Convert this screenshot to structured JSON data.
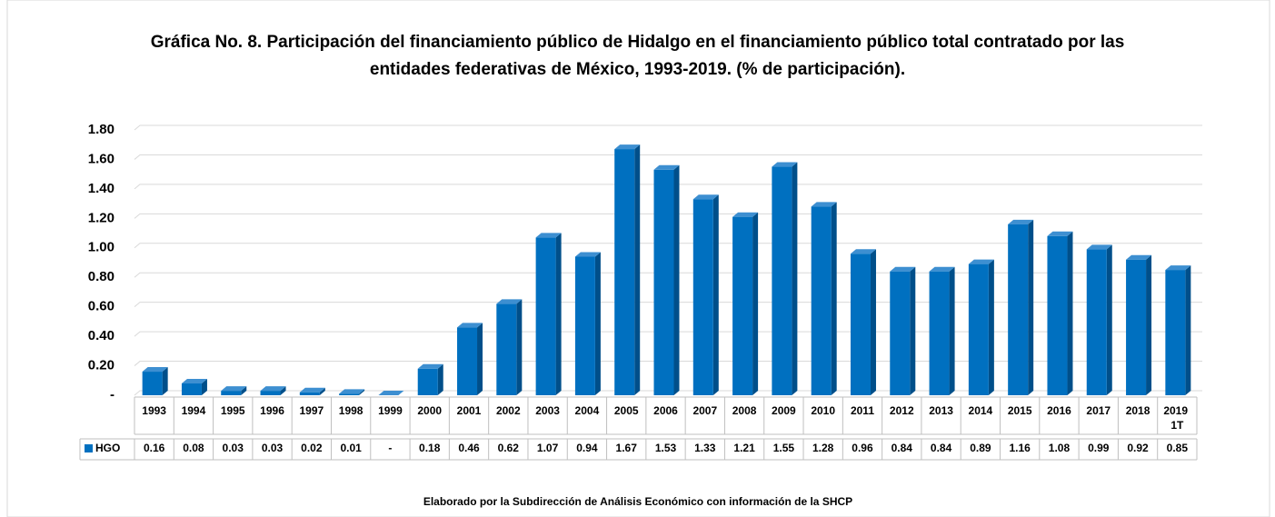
{
  "chart_data": {
    "type": "bar",
    "title": "Gráfica No. 8. Participación del financiamiento público de Hidalgo en el financiamiento público total contratado por las entidades federativas de México, 1993-2019. (% de participación).",
    "categories": [
      "1993",
      "1994",
      "1995",
      "1996",
      "1997",
      "1998",
      "1999",
      "2000",
      "2001",
      "2002",
      "2003",
      "2004",
      "2005",
      "2006",
      "2007",
      "2008",
      "2009",
      "2010",
      "2011",
      "2012",
      "2013",
      "2014",
      "2015",
      "2016",
      "2017",
      "2018",
      "2019 1T"
    ],
    "series": [
      {
        "name": "HGO",
        "color": "#0070c0",
        "values": [
          0.16,
          0.08,
          0.03,
          0.03,
          0.02,
          0.01,
          0,
          0.18,
          0.46,
          0.62,
          1.07,
          0.94,
          1.67,
          1.53,
          1.33,
          1.21,
          1.55,
          1.28,
          0.96,
          0.84,
          0.84,
          0.89,
          1.16,
          1.08,
          0.99,
          0.92,
          0.85
        ],
        "value_labels": [
          "0.16",
          "0.08",
          "0.03",
          "0.03",
          "0.02",
          "0.01",
          "-",
          "0.18",
          "0.46",
          "0.62",
          "1.07",
          "0.94",
          "1.67",
          "1.53",
          "1.33",
          "1.21",
          "1.55",
          "1.28",
          "0.96",
          "0.84",
          "0.84",
          "0.89",
          "1.16",
          "1.08",
          "0.99",
          "0.92",
          "0.85"
        ]
      }
    ],
    "ylim": [
      0,
      1.8
    ],
    "yticks": [
      {
        "value": 0,
        "label": "-"
      },
      {
        "value": 0.2,
        "label": "0.20"
      },
      {
        "value": 0.4,
        "label": "0.40"
      },
      {
        "value": 0.6,
        "label": "0.60"
      },
      {
        "value": 0.8,
        "label": "0.80"
      },
      {
        "value": 1,
        "label": "1.00"
      },
      {
        "value": 1.2,
        "label": "1.20"
      },
      {
        "value": 1.4,
        "label": "1.40"
      },
      {
        "value": 1.6,
        "label": "1.60"
      },
      {
        "value": 1.8,
        "label": "1.80"
      }
    ],
    "grid": true,
    "source": "Elaborado por la Subdirección de Análisis Económico con información de la SHCP"
  }
}
